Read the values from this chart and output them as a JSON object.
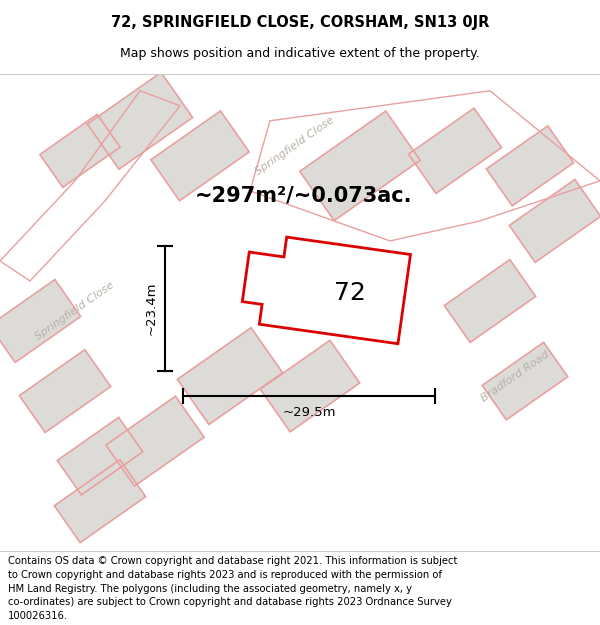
{
  "title_line1": "72, SPRINGFIELD CLOSE, CORSHAM, SN13 0JR",
  "title_line2": "Map shows position and indicative extent of the property.",
  "area_text": "~297m²/~0.073ac.",
  "label_number": "72",
  "dim_height": "~23.4m",
  "dim_width": "~29.5m",
  "footer_text": "Contains OS data © Crown copyright and database right 2021. This information is subject to Crown copyright and database rights 2023 and is reproduced with the permission of HM Land Registry. The polygons (including the associated geometry, namely x, y co-ordinates) are subject to Crown copyright and database rights 2023 Ordnance Survey 100026316.",
  "bg_color": "#eeece9",
  "road_color": "#ffffff",
  "block_color": "#dddbd8",
  "red_outline": "#dd0000",
  "light_red": "#e8a0a0",
  "street_label_color": "#b8b0a8",
  "title_fontsize": 10.5,
  "subtitle_fontsize": 9,
  "area_fontsize": 15,
  "number_fontsize": 18,
  "dim_fontsize": 9.5,
  "footer_fontsize": 7.2
}
